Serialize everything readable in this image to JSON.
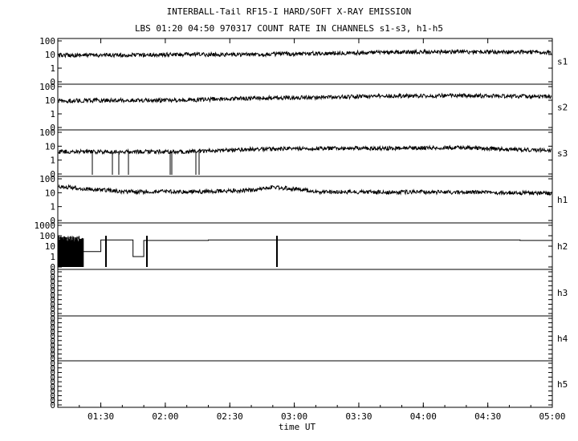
{
  "title": "INTERBALL-Tail RF15-I HARD/SOFT X-RAY EMISSION",
  "subtitle": "LBS 01:20 04:50 970317  COUNT RATE IN CHANNELS s1-s3, h1-h5",
  "colors": {
    "trace": "#000000",
    "background": "#ffffff",
    "axes": "#000000"
  },
  "chart_data": {
    "type": "line",
    "xlabel": "time UT",
    "xlim": [
      "01:10",
      "05:00"
    ],
    "xticks": [
      "01:30",
      "02:00",
      "02:30",
      "03:00",
      "03:30",
      "04:00",
      "04:30",
      "05:00"
    ],
    "log_y": true,
    "grid": false,
    "panels": [
      {
        "name": "s1",
        "yticks": [
          "100",
          "10",
          "1",
          "0"
        ],
        "series": [
          {
            "name": "s1",
            "x": [
              "01:10",
              "01:40",
              "02:10",
              "02:40",
              "03:10",
              "03:40",
              "04:10",
              "04:40",
              "05:00"
            ],
            "values": [
              9,
              9,
              10,
              10,
              12,
              14,
              16,
              15,
              15
            ]
          }
        ]
      },
      {
        "name": "s2",
        "yticks": [
          "100",
          "10",
          "1",
          "0"
        ],
        "series": [
          {
            "name": "s2",
            "x": [
              "01:10",
              "01:40",
              "02:10",
              "02:40",
              "03:10",
              "03:40",
              "04:10",
              "04:40",
              "05:00"
            ],
            "values": [
              9,
              10,
              10,
              14,
              16,
              20,
              22,
              20,
              18
            ]
          }
        ]
      },
      {
        "name": "s3",
        "yticks": [
          "100",
          "10",
          "1",
          "0"
        ],
        "series": [
          {
            "name": "s3",
            "x": [
              "01:10",
              "01:40",
              "02:10",
              "02:40",
              "03:10",
              "03:40",
              "04:10",
              "04:40",
              "05:00"
            ],
            "values": [
              4,
              4,
              4,
              6,
              7,
              7,
              8,
              6,
              5
            ]
          }
        ]
      },
      {
        "name": "h1",
        "yticks": [
          "100",
          "10",
          "1",
          "0"
        ],
        "series": [
          {
            "name": "h1",
            "x": [
              "01:10",
              "01:20",
              "01:40",
              "02:00",
              "02:20",
              "02:40",
              "02:50",
              "03:10",
              "03:40",
              "04:10",
              "04:40",
              "05:00"
            ],
            "values": [
              30,
              20,
              12,
              12,
              12,
              15,
              25,
              12,
              11,
              11,
              10,
              9
            ]
          }
        ]
      },
      {
        "name": "h2",
        "yticks": [
          "1000",
          "100",
          "10",
          "1",
          "0"
        ],
        "series": [
          {
            "name": "h2",
            "x": [
              "01:10",
              "01:20",
              "01:30",
              "01:45",
              "01:50",
              "02:20",
              "02:50",
              "03:50",
              "04:45",
              "05:00"
            ],
            "values": [
              60,
              3,
              40,
              1,
              35,
              40,
              40,
              40,
              35,
              35
            ]
          }
        ]
      },
      {
        "name": "h3",
        "yticks": [
          "0",
          "0",
          "0",
          "0",
          "0",
          "0",
          "0",
          "0",
          "0",
          "0"
        ],
        "series": [
          {
            "name": "h3",
            "values": [
              0
            ]
          }
        ]
      },
      {
        "name": "h4",
        "yticks": [
          "0",
          "0",
          "0",
          "0",
          "0",
          "0",
          "0",
          "0",
          "0",
          "0"
        ],
        "series": [
          {
            "name": "h4",
            "values": [
              0
            ]
          }
        ]
      },
      {
        "name": "h5",
        "yticks": [
          "0",
          "0",
          "0",
          "0",
          "0",
          "0",
          "0",
          "0",
          "0",
          "0"
        ],
        "series": [
          {
            "name": "h5",
            "values": [
              0
            ]
          }
        ]
      }
    ]
  }
}
